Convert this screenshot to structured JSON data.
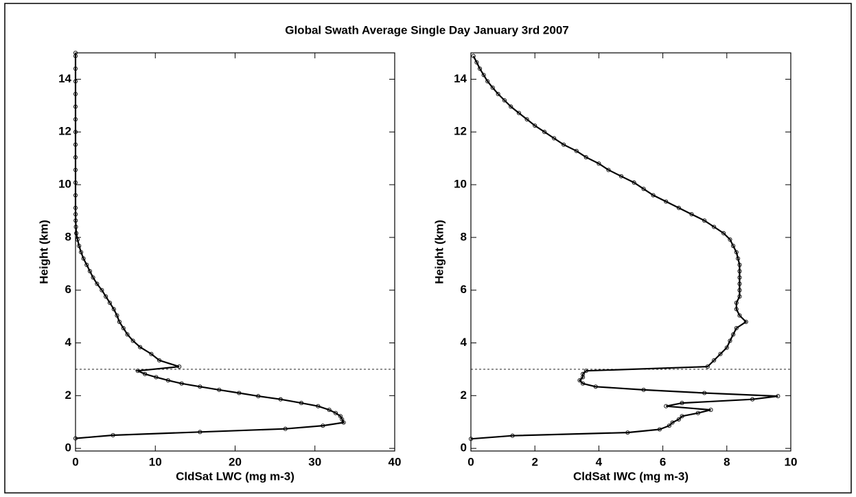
{
  "title": "Global Swath Average Single Day January 3rd 2007",
  "chart_data": [
    {
      "type": "line",
      "xlabel": "CldSat LWC (mg m-3)",
      "ylabel": "Height (km)",
      "xlim": [
        0,
        40
      ],
      "ylim": [
        -0.1,
        15
      ],
      "xticks": [
        0,
        10,
        20,
        30,
        40
      ],
      "yticks": [
        0,
        2,
        4,
        6,
        8,
        10,
        12,
        14
      ],
      "color": "#000000",
      "marker": "circle",
      "hline": 3,
      "series": [
        {
          "x": [
            0,
            4.7,
            15.6,
            26.3,
            31.0,
            33.6,
            33.4,
            33.2,
            32.6,
            31.8,
            30.4,
            28.3,
            25.7,
            22.9,
            20.5,
            18.0,
            15.6,
            13.3,
            11.6,
            10.1,
            8.7,
            7.8,
            13.0,
            10.5,
            9.5,
            8.1,
            7.2,
            6.5,
            6.0,
            5.5,
            5.2,
            4.8,
            4.3,
            3.8,
            3.3,
            2.7,
            2.2,
            1.8,
            1.4,
            1.0,
            0.7,
            0.45,
            0.25,
            0.1,
            0.05,
            0.02,
            0.01,
            0,
            0,
            0,
            0,
            0,
            0,
            0,
            0,
            0,
            0,
            0,
            0,
            0,
            0
          ],
          "y": [
            0.38,
            0.5,
            0.62,
            0.74,
            0.86,
            0.98,
            1.1,
            1.22,
            1.34,
            1.46,
            1.6,
            1.72,
            1.86,
            1.98,
            2.1,
            2.22,
            2.34,
            2.46,
            2.58,
            2.7,
            2.82,
            2.94,
            3.1,
            3.34,
            3.58,
            3.84,
            4.08,
            4.32,
            4.56,
            4.8,
            5.04,
            5.28,
            5.52,
            5.76,
            6.0,
            6.24,
            6.48,
            6.72,
            6.96,
            7.2,
            7.44,
            7.68,
            7.92,
            8.16,
            8.4,
            8.64,
            8.88,
            9.12,
            9.6,
            10.08,
            10.56,
            11.04,
            11.52,
            12.0,
            12.48,
            12.96,
            13.44,
            13.92,
            14.4,
            14.88,
            15.0
          ]
        }
      ]
    },
    {
      "type": "line",
      "xlabel": "CldSat IWC (mg m-3)",
      "ylabel": "Height (km)",
      "xlim": [
        0,
        10
      ],
      "ylim": [
        -0.1,
        15
      ],
      "xticks": [
        0,
        2,
        4,
        6,
        8,
        10
      ],
      "yticks": [
        0,
        2,
        4,
        6,
        8,
        10,
        12,
        14
      ],
      "color": "#000000",
      "marker": "circle",
      "hline": 3,
      "series": [
        {
          "x": [
            0,
            1.3,
            4.9,
            5.9,
            6.2,
            6.3,
            6.5,
            6.6,
            7.1,
            7.5,
            6.1,
            6.6,
            8.8,
            9.6,
            7.3,
            5.4,
            3.9,
            3.5,
            3.4,
            3.5,
            3.5,
            3.6,
            7.4,
            7.6,
            7.8,
            8.0,
            8.1,
            8.2,
            8.3,
            8.6,
            8.4,
            8.3,
            8.3,
            8.4,
            8.4,
            8.4,
            8.4,
            8.4,
            8.4,
            8.35,
            8.3,
            8.2,
            8.1,
            7.9,
            7.6,
            7.3,
            6.9,
            6.5,
            6.1,
            5.7,
            5.4,
            5.1,
            4.7,
            4.3,
            4.0,
            3.6,
            3.3,
            2.9,
            2.6,
            2.3,
            2.0,
            1.75,
            1.5,
            1.25,
            1.05,
            0.85,
            0.68,
            0.52,
            0.4,
            0.28,
            0.18,
            0.08
          ],
          "y": [
            0.36,
            0.48,
            0.6,
            0.72,
            0.86,
            0.98,
            1.1,
            1.22,
            1.34,
            1.46,
            1.6,
            1.72,
            1.86,
            1.98,
            2.1,
            2.22,
            2.34,
            2.46,
            2.58,
            2.7,
            2.82,
            2.94,
            3.1,
            3.34,
            3.58,
            3.82,
            4.08,
            4.32,
            4.56,
            4.8,
            5.04,
            5.28,
            5.52,
            5.76,
            6.0,
            6.24,
            6.48,
            6.72,
            6.96,
            7.2,
            7.44,
            7.68,
            7.92,
            8.16,
            8.4,
            8.64,
            8.88,
            9.12,
            9.36,
            9.6,
            9.84,
            10.08,
            10.32,
            10.56,
            10.8,
            11.04,
            11.28,
            11.52,
            11.76,
            12.0,
            12.24,
            12.48,
            12.72,
            12.96,
            13.2,
            13.44,
            13.68,
            13.92,
            14.16,
            14.4,
            14.64,
            14.88
          ]
        }
      ]
    }
  ]
}
